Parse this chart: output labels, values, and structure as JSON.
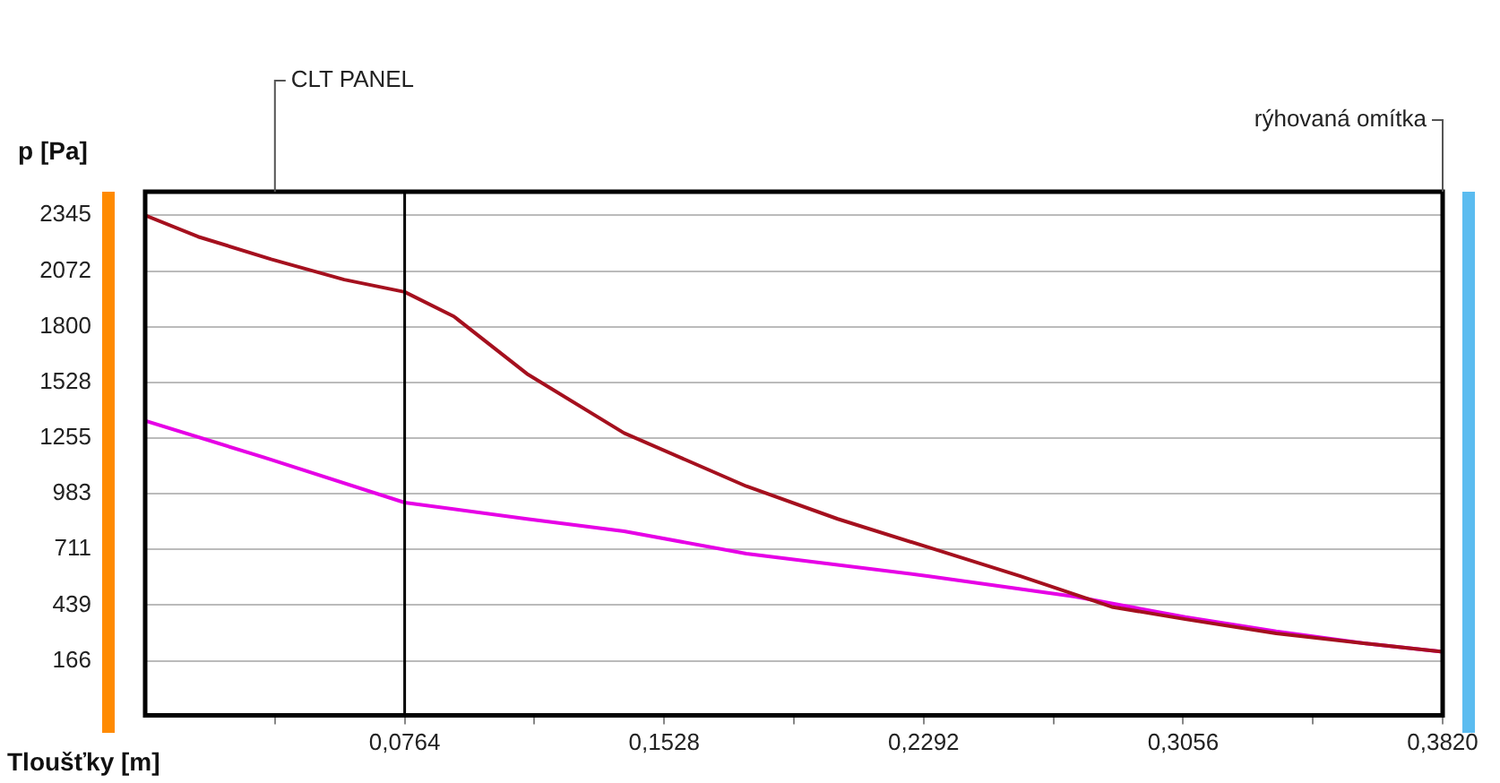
{
  "chart_data": {
    "type": "line",
    "xlabel": "Tloušťky [m]",
    "ylabel": "p [Pa]",
    "xlim": [
      0,
      0.382
    ],
    "ylim": [
      -100,
      2460
    ],
    "xticks": [
      {
        "value": 0.0382,
        "label": null
      },
      {
        "value": 0.0764,
        "label": "0,0764"
      },
      {
        "value": 0.1146,
        "label": null
      },
      {
        "value": 0.1528,
        "label": "0,1528"
      },
      {
        "value": 0.191,
        "label": null
      },
      {
        "value": 0.2292,
        "label": "0,2292"
      },
      {
        "value": 0.2674,
        "label": null
      },
      {
        "value": 0.3056,
        "label": "0,3056"
      },
      {
        "value": 0.3438,
        "label": null
      },
      {
        "value": 0.382,
        "label": "0,3820"
      }
    ],
    "yticks": [
      166,
      439,
      711,
      983,
      1255,
      1528,
      1800,
      2072,
      2345
    ],
    "grid": "y",
    "legend": false,
    "marker": "none",
    "line_style": "solid",
    "series": [
      {
        "color": "#a5101e",
        "x": [
          0,
          0.0156,
          0.0371,
          0.0586,
          0.0764,
          0.0909,
          0.1124,
          0.141,
          0.177,
          0.2039,
          0.2308,
          0.2577,
          0.2846,
          0.3062,
          0.333,
          0.36,
          0.382
        ],
        "values": [
          2345,
          2240,
          2130,
          2030,
          1970,
          1850,
          1570,
          1280,
          1020,
          860,
          720,
          580,
          430,
          370,
          300,
          250,
          210
        ]
      },
      {
        "color": "#e600e6",
        "x": [
          0,
          0.0371,
          0.0764,
          0.1124,
          0.141,
          0.177,
          0.2308,
          0.2738,
          0.3062,
          0.333,
          0.36,
          0.382
        ],
        "values": [
          1340,
          1150,
          940,
          860,
          800,
          690,
          580,
          480,
          380,
          310,
          250,
          210
        ]
      }
    ],
    "ref_lines": [
      {
        "axis": "x",
        "value": 0.0764,
        "color": "#000000"
      }
    ],
    "annotations": [
      "CLT PANEL",
      "rýhovaná omítka"
    ]
  }
}
